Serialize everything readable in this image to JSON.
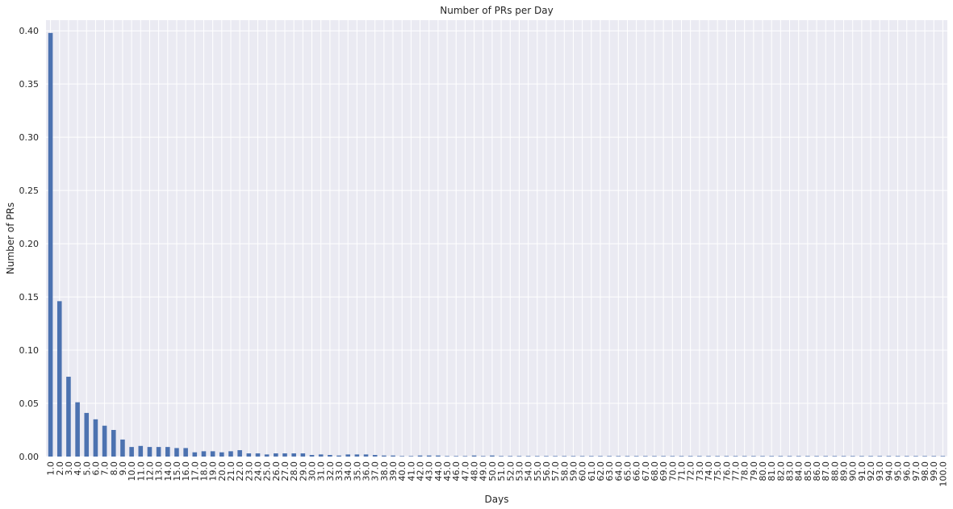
{
  "chart_data": {
    "type": "bar",
    "title": "Number of PRs per Day",
    "xlabel": "Days",
    "ylabel": "Number of PRs",
    "ylim": [
      0,
      0.41
    ],
    "yticks": [
      0.0,
      0.05,
      0.1,
      0.15,
      0.2,
      0.25,
      0.3,
      0.35,
      0.4
    ],
    "ytick_labels": [
      "0.00",
      "0.05",
      "0.10",
      "0.15",
      "0.20",
      "0.25",
      "0.30",
      "0.35",
      "0.40"
    ],
    "grid": true,
    "bar_color": "#4c72b0",
    "background_color": "#eaeaf2",
    "categories": [
      "1.0",
      "2.0",
      "3.0",
      "4.0",
      "5.0",
      "6.0",
      "7.0",
      "8.0",
      "9.0",
      "10.0",
      "11.0",
      "12.0",
      "13.0",
      "14.0",
      "15.0",
      "16.0",
      "17.0",
      "18.0",
      "19.0",
      "20.0",
      "21.0",
      "22.0",
      "23.0",
      "24.0",
      "25.0",
      "26.0",
      "27.0",
      "28.0",
      "29.0",
      "30.0",
      "31.0",
      "32.0",
      "33.0",
      "34.0",
      "35.0",
      "36.0",
      "37.0",
      "38.0",
      "39.0",
      "40.0",
      "41.0",
      "42.0",
      "43.0",
      "44.0",
      "45.0",
      "46.0",
      "47.0",
      "48.0",
      "49.0",
      "50.0",
      "51.0",
      "52.0",
      "53.0",
      "54.0",
      "55.0",
      "56.0",
      "57.0",
      "58.0",
      "59.0",
      "60.0",
      "61.0",
      "62.0",
      "63.0",
      "64.0",
      "65.0",
      "66.0",
      "67.0",
      "68.0",
      "69.0",
      "70.0",
      "71.0",
      "72.0",
      "73.0",
      "74.0",
      "75.0",
      "76.0",
      "77.0",
      "78.0",
      "79.0",
      "80.0",
      "81.0",
      "82.0",
      "83.0",
      "84.0",
      "85.0",
      "86.0",
      "87.0",
      "88.0",
      "89.0",
      "90.0",
      "91.0",
      "92.0",
      "93.0",
      "94.0",
      "95.0",
      "96.0",
      "97.0",
      "98.0",
      "99.0",
      "100.0"
    ],
    "values": [
      0.398,
      0.146,
      0.075,
      0.051,
      0.041,
      0.035,
      0.029,
      0.025,
      0.016,
      0.009,
      0.01,
      0.009,
      0.009,
      0.009,
      0.008,
      0.008,
      0.004,
      0.005,
      0.005,
      0.004,
      0.005,
      0.006,
      0.003,
      0.003,
      0.002,
      0.003,
      0.003,
      0.003,
      0.003,
      0.0015,
      0.002,
      0.0015,
      0.001,
      0.002,
      0.002,
      0.002,
      0.0015,
      0.001,
      0.001,
      0.0005,
      0.0005,
      0.001,
      0.001,
      0.001,
      0.0005,
      0.0005,
      0.0005,
      0.001,
      0.0005,
      0.001,
      0.0005,
      0.0005,
      0.0005,
      0.0005,
      0.0005,
      0.0005,
      0.0005,
      0.0005,
      0.0005,
      0.0005,
      0.0005,
      0.0005,
      0.0005,
      0.0005,
      0.0005,
      0.0005,
      0.0005,
      0.0005,
      0.0005,
      0.0005,
      0.0005,
      0.0005,
      0.0005,
      0.0005,
      0.0005,
      0.0005,
      0.0005,
      0.0005,
      0.0005,
      0.0005,
      0.0005,
      0.0005,
      0.0005,
      0.0005,
      0.0005,
      0.0005,
      0.0005,
      0.0005,
      0.0005,
      0.0005,
      0.0005,
      0.0005,
      0.0005,
      0.0005,
      0.0005,
      0.0005,
      0.0005,
      0.0005,
      0.0005,
      0.0005
    ]
  }
}
